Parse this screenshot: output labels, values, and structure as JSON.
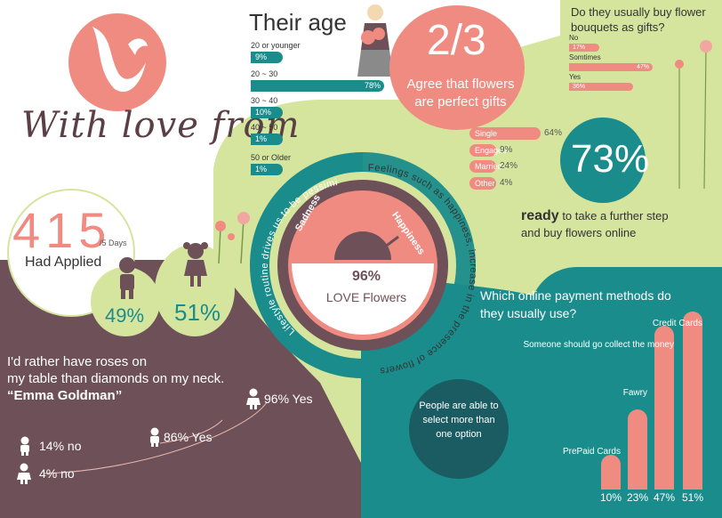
{
  "brand": {
    "script_text": "With love from"
  },
  "applied": {
    "number": "415",
    "unit": "/5 Days",
    "label": "Had Applied"
  },
  "gender": {
    "male_pct": "49%",
    "female_pct": "51%"
  },
  "age": {
    "title": "Their age",
    "groups": [
      {
        "label": "20 or younger",
        "value": "9%",
        "pct": 9
      },
      {
        "label": "20 ~ 30",
        "value": "78%",
        "pct": 78
      },
      {
        "label": "30 ~ 40",
        "value": "10%",
        "pct": 10
      },
      {
        "label": "40 ~ 50",
        "value": "1%",
        "pct": 1
      },
      {
        "label": "50 or Older",
        "value": "1%",
        "pct": 1
      }
    ]
  },
  "agree": {
    "fraction": "2/3",
    "line1": "Agree that flowers",
    "line2": "are perfect gifts"
  },
  "bouquet": {
    "question_line1": "Do they usually buy flower",
    "question_line2": "bouquets as gifts?",
    "answers": [
      {
        "label": "No",
        "value": "17%",
        "pct": 17
      },
      {
        "label": "Somtimes",
        "value": "47%",
        "pct": 47
      },
      {
        "label": "Yes",
        "value": "36%",
        "pct": 36
      }
    ]
  },
  "marital": [
    {
      "label": "Single",
      "value": "64%",
      "pct": 64
    },
    {
      "label": "Engaged",
      "value": "9%",
      "pct": 9
    },
    {
      "label": "Married",
      "value": "24%",
      "pct": 24
    },
    {
      "label": "Other",
      "value": "4%",
      "pct": 4
    }
  ],
  "ready": {
    "value": "73%",
    "bold": "ready",
    "rest1": " to take a further step",
    "line2": "and buy flowers online"
  },
  "gauge": {
    "left_label": "Sadness",
    "right_label": "Happiness",
    "value": "96%",
    "caption": "LOVE Flowers",
    "arc_left": "Lifestyle routine drives us to be pessimistic",
    "arc_right": "Feelings such as happiness, increase in the presence of flowers"
  },
  "quote": {
    "line1": "I'd rather have roses on",
    "line2": "my table than diamonds on my neck.",
    "author": "“Emma Goldman”"
  },
  "roses_answers": [
    {
      "text": "96% Yes"
    },
    {
      "text": "86% Yes"
    },
    {
      "text": "14% no"
    },
    {
      "text": "4% no"
    }
  ],
  "payment": {
    "question_line1": "Which online payment methods do",
    "question_line2": "they usually use?",
    "note": "People are able to select more than one option",
    "methods": [
      {
        "label": "PrePaid Cards",
        "value": "10%",
        "pct": 10
      },
      {
        "label": "Fawry",
        "value": "23%",
        "pct": 23
      },
      {
        "label": "Someone should go collect the money",
        "value": "47%",
        "pct": 47
      },
      {
        "label": "Credit Cards",
        "value": "51%",
        "pct": 51
      }
    ]
  },
  "colors": {
    "teal": "#1a8c8c",
    "coral": "#ef8b80",
    "lime": "#d5e59e",
    "brown": "#6e5158",
    "dark_teal": "#1a5c62"
  }
}
